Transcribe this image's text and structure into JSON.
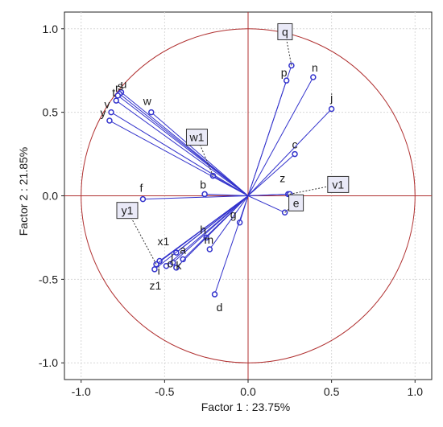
{
  "chart_data": {
    "type": "scatter",
    "title": "",
    "xlabel": "Factor 1 : 23.75%",
    "ylabel": "Factor 2 : 21.85%",
    "xlim": [
      -1.1,
      1.1
    ],
    "ylim": [
      -1.1,
      1.1
    ],
    "x_ticks": [
      "-1.0",
      "-0.5",
      "0.0",
      "0.5",
      "1.0"
    ],
    "y_ticks": [
      "1.0",
      "0.5",
      "0.0",
      "-0.5",
      "-1.0"
    ],
    "grid": true,
    "unit_circle": true,
    "colors": {
      "vectors": "#3333cc",
      "circle": "#b03030",
      "axes": "#b03030",
      "grid": "#d8d8d8"
    },
    "points": [
      {
        "label": "q",
        "x": 0.26,
        "y": 0.78,
        "boxed": true
      },
      {
        "label": "p",
        "x": 0.23,
        "y": 0.69,
        "boxed": false
      },
      {
        "label": "n",
        "x": 0.39,
        "y": 0.71,
        "boxed": false
      },
      {
        "label": "j",
        "x": 0.5,
        "y": 0.52,
        "boxed": false
      },
      {
        "label": "c",
        "x": 0.28,
        "y": 0.25,
        "boxed": false
      },
      {
        "label": "z",
        "x": 0.24,
        "y": 0.01,
        "boxed": false
      },
      {
        "label": "v1",
        "x": 0.25,
        "y": 0.01,
        "boxed": true
      },
      {
        "label": "e",
        "x": 0.22,
        "y": -0.1,
        "boxed": true
      },
      {
        "label": "g",
        "x": -0.05,
        "y": -0.16,
        "boxed": false
      },
      {
        "label": "w1",
        "x": -0.21,
        "y": 0.12,
        "boxed": true
      },
      {
        "label": "b",
        "x": -0.26,
        "y": 0.01,
        "boxed": false
      },
      {
        "label": "f",
        "x": -0.63,
        "y": -0.02,
        "boxed": false
      },
      {
        "label": "w",
        "x": -0.58,
        "y": 0.5,
        "boxed": false
      },
      {
        "label": "u",
        "x": -0.76,
        "y": 0.62,
        "boxed": false
      },
      {
        "label": "s",
        "x": -0.77,
        "y": 0.61,
        "boxed": false
      },
      {
        "label": "r",
        "x": -0.78,
        "y": 0.6,
        "boxed": false
      },
      {
        "label": "t",
        "x": -0.79,
        "y": 0.57,
        "boxed": false
      },
      {
        "label": "v",
        "x": -0.82,
        "y": 0.5,
        "boxed": false
      },
      {
        "label": "y",
        "x": -0.83,
        "y": 0.45,
        "boxed": false
      },
      {
        "label": "h",
        "x": -0.25,
        "y": -0.25,
        "boxed": false
      },
      {
        "label": "m",
        "x": -0.23,
        "y": -0.32,
        "boxed": false
      },
      {
        "label": "d",
        "x": -0.2,
        "y": -0.59,
        "boxed": false
      },
      {
        "label": "x1",
        "x": -0.43,
        "y": -0.34,
        "boxed": false
      },
      {
        "label": "a",
        "x": -0.39,
        "y": -0.38,
        "boxed": false
      },
      {
        "label": "l",
        "x": -0.45,
        "y": -0.4,
        "boxed": false
      },
      {
        "label": "k",
        "x": -0.43,
        "y": -0.43,
        "boxed": false
      },
      {
        "label": "o",
        "x": -0.49,
        "y": -0.42,
        "boxed": false
      },
      {
        "label": "i",
        "x": -0.53,
        "y": -0.39,
        "boxed": false
      },
      {
        "label": "z1",
        "x": -0.56,
        "y": -0.44,
        "boxed": false
      },
      {
        "label": "y1",
        "x": -0.55,
        "y": -0.41,
        "boxed": true
      }
    ]
  }
}
